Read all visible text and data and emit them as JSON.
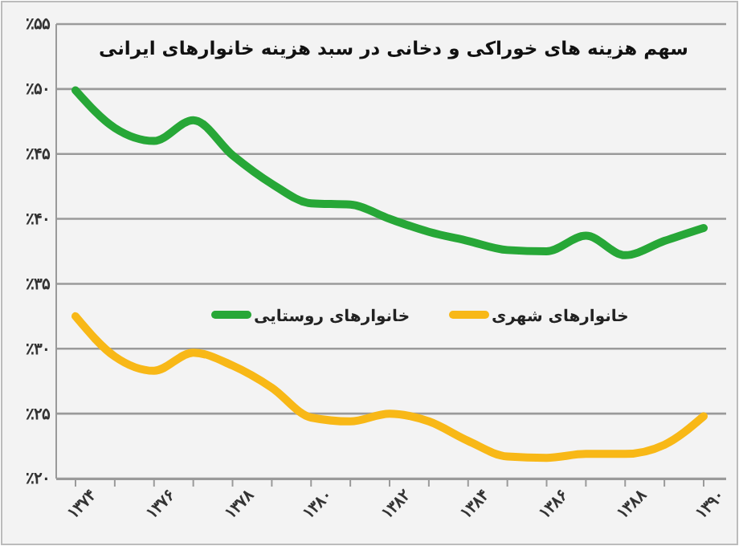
{
  "chart_data": {
    "type": "line",
    "title": "سهم هزینه های خوراکی و دخانی در سبد هزینه خانوارهای ایرانی",
    "categories": [
      "۱۳۷۴",
      null,
      "۱۳۷۶",
      null,
      "۱۳۷۸",
      null,
      "۱۳۸۰",
      null,
      "۱۳۸۲",
      null,
      "۱۳۸۴",
      null,
      "۱۳۸۶",
      null,
      "۱۳۸۸",
      null,
      "۱۳۹۰"
    ],
    "series": [
      {
        "name": "خانوارهای روستایی",
        "color": "#27a737",
        "values": [
          49.9,
          47.0,
          46.0,
          47.6,
          44.9,
          42.7,
          41.2,
          41.1,
          40.0,
          39.0,
          38.3,
          37.6,
          37.5,
          38.7,
          37.2,
          38.3,
          39.3
        ]
      },
      {
        "name": "خانوارهای شهری",
        "color": "#f8b817",
        "values": [
          32.5,
          29.4,
          28.3,
          29.7,
          28.7,
          27.0,
          24.7,
          24.4,
          25.0,
          24.4,
          22.9,
          21.7,
          21.6,
          21.9,
          21.9,
          22.6,
          24.8
        ]
      }
    ],
    "ylim": [
      20,
      55
    ],
    "yticks": [
      {
        "value": 20,
        "label": "٪۲۰"
      },
      {
        "value": 25,
        "label": "٪۲۵"
      },
      {
        "value": 30,
        "label": "٪۳۰"
      },
      {
        "value": 35,
        "label": "٪۳۵"
      },
      {
        "value": 40,
        "label": "٪۴۰"
      },
      {
        "value": 45,
        "label": "٪۴۵"
      },
      {
        "value": 50,
        "label": "٪۵۰"
      },
      {
        "value": 55,
        "label": "٪۵۵"
      }
    ],
    "grid": "y",
    "legend": "center",
    "marker": "none",
    "line_style": "solid"
  }
}
